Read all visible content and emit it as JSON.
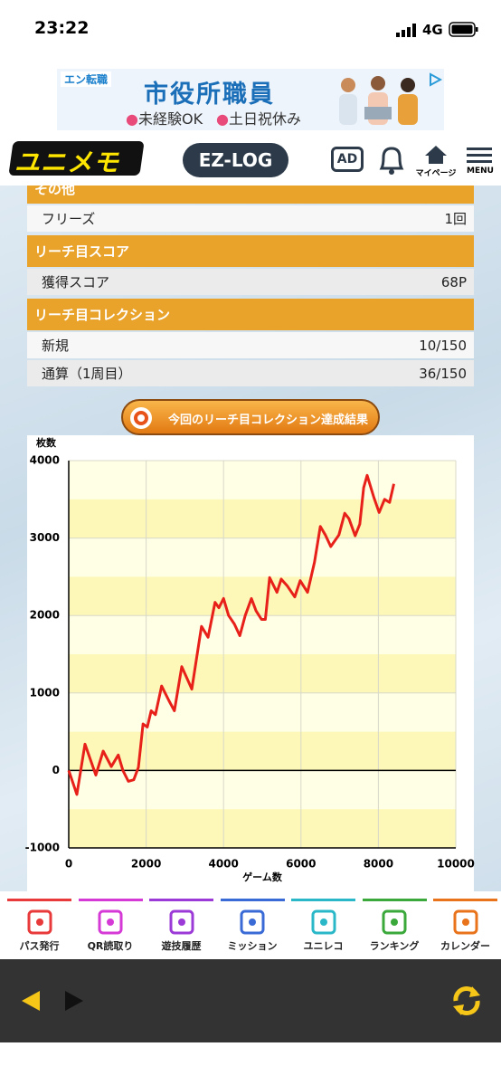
{
  "status_bar": {
    "time": "23:22",
    "network": "4G"
  },
  "ad": {
    "brand": "エン転職",
    "headline": "市役所職員",
    "tags": [
      "未経験OK",
      "土日祝休み"
    ]
  },
  "header": {
    "logo": "ユニメモ",
    "center_button": "EZ-LOG",
    "ad_button": "AD",
    "mypage": "マイページ",
    "menu": "MENU"
  },
  "table": {
    "sections": [
      {
        "title": "その他",
        "rows": [
          [
            "フリーズ",
            "1回"
          ]
        ]
      },
      {
        "title": "リーチ目スコア",
        "rows": [
          [
            "獲得スコア",
            "68P"
          ]
        ]
      },
      {
        "title": "リーチ目コレクション",
        "rows": [
          [
            "新規",
            "10/150"
          ],
          [
            "通算（1周目）",
            "36/150"
          ]
        ]
      }
    ]
  },
  "result_button": "今回のリーチ目コレクション達成結果",
  "chart_data": {
    "type": "line",
    "y_label": "枚数",
    "x_label": "ゲーム数",
    "x": [
      0,
      210,
      420,
      700,
      890,
      1100,
      1280,
      1400,
      1540,
      1680,
      1800,
      1920,
      2030,
      2130,
      2240,
      2400,
      2590,
      2730,
      2920,
      3180,
      3430,
      3600,
      3780,
      3880,
      4000,
      4130,
      4280,
      4420,
      4560,
      4720,
      4840,
      4980,
      5080,
      5190,
      5380,
      5490,
      5650,
      5840,
      5980,
      6170,
      6350,
      6500,
      6630,
      6770,
      6980,
      7130,
      7240,
      7400,
      7520,
      7620,
      7710,
      7880,
      8020,
      8160,
      8290,
      8400
    ],
    "series": [
      {
        "name": "枚数",
        "color": "#e8201a",
        "values": [
          0,
          -310,
          340,
          -60,
          250,
          50,
          200,
          0,
          -140,
          -120,
          40,
          600,
          560,
          770,
          720,
          1090,
          900,
          770,
          1340,
          1050,
          1860,
          1720,
          2170,
          2100,
          2220,
          2000,
          1890,
          1740,
          2000,
          2220,
          2060,
          1950,
          1950,
          2490,
          2300,
          2470,
          2380,
          2240,
          2450,
          2300,
          2690,
          3150,
          3040,
          2890,
          3040,
          3320,
          3250,
          3030,
          3180,
          3650,
          3810,
          3530,
          3330,
          3500,
          3460,
          3700
        ]
      }
    ],
    "xlim": [
      0,
      10000
    ],
    "xticks": [
      0,
      2000,
      4000,
      6000,
      8000,
      10000
    ],
    "ylim": [
      -1000,
      4000
    ],
    "yticks": [
      -1000,
      0,
      1000,
      2000,
      3000,
      4000
    ],
    "grid": true
  },
  "nav": [
    "パス発行",
    "QR読取り",
    "遊技履歴",
    "ミッション",
    "ユニレコ",
    "ランキング",
    "カレンダー"
  ]
}
